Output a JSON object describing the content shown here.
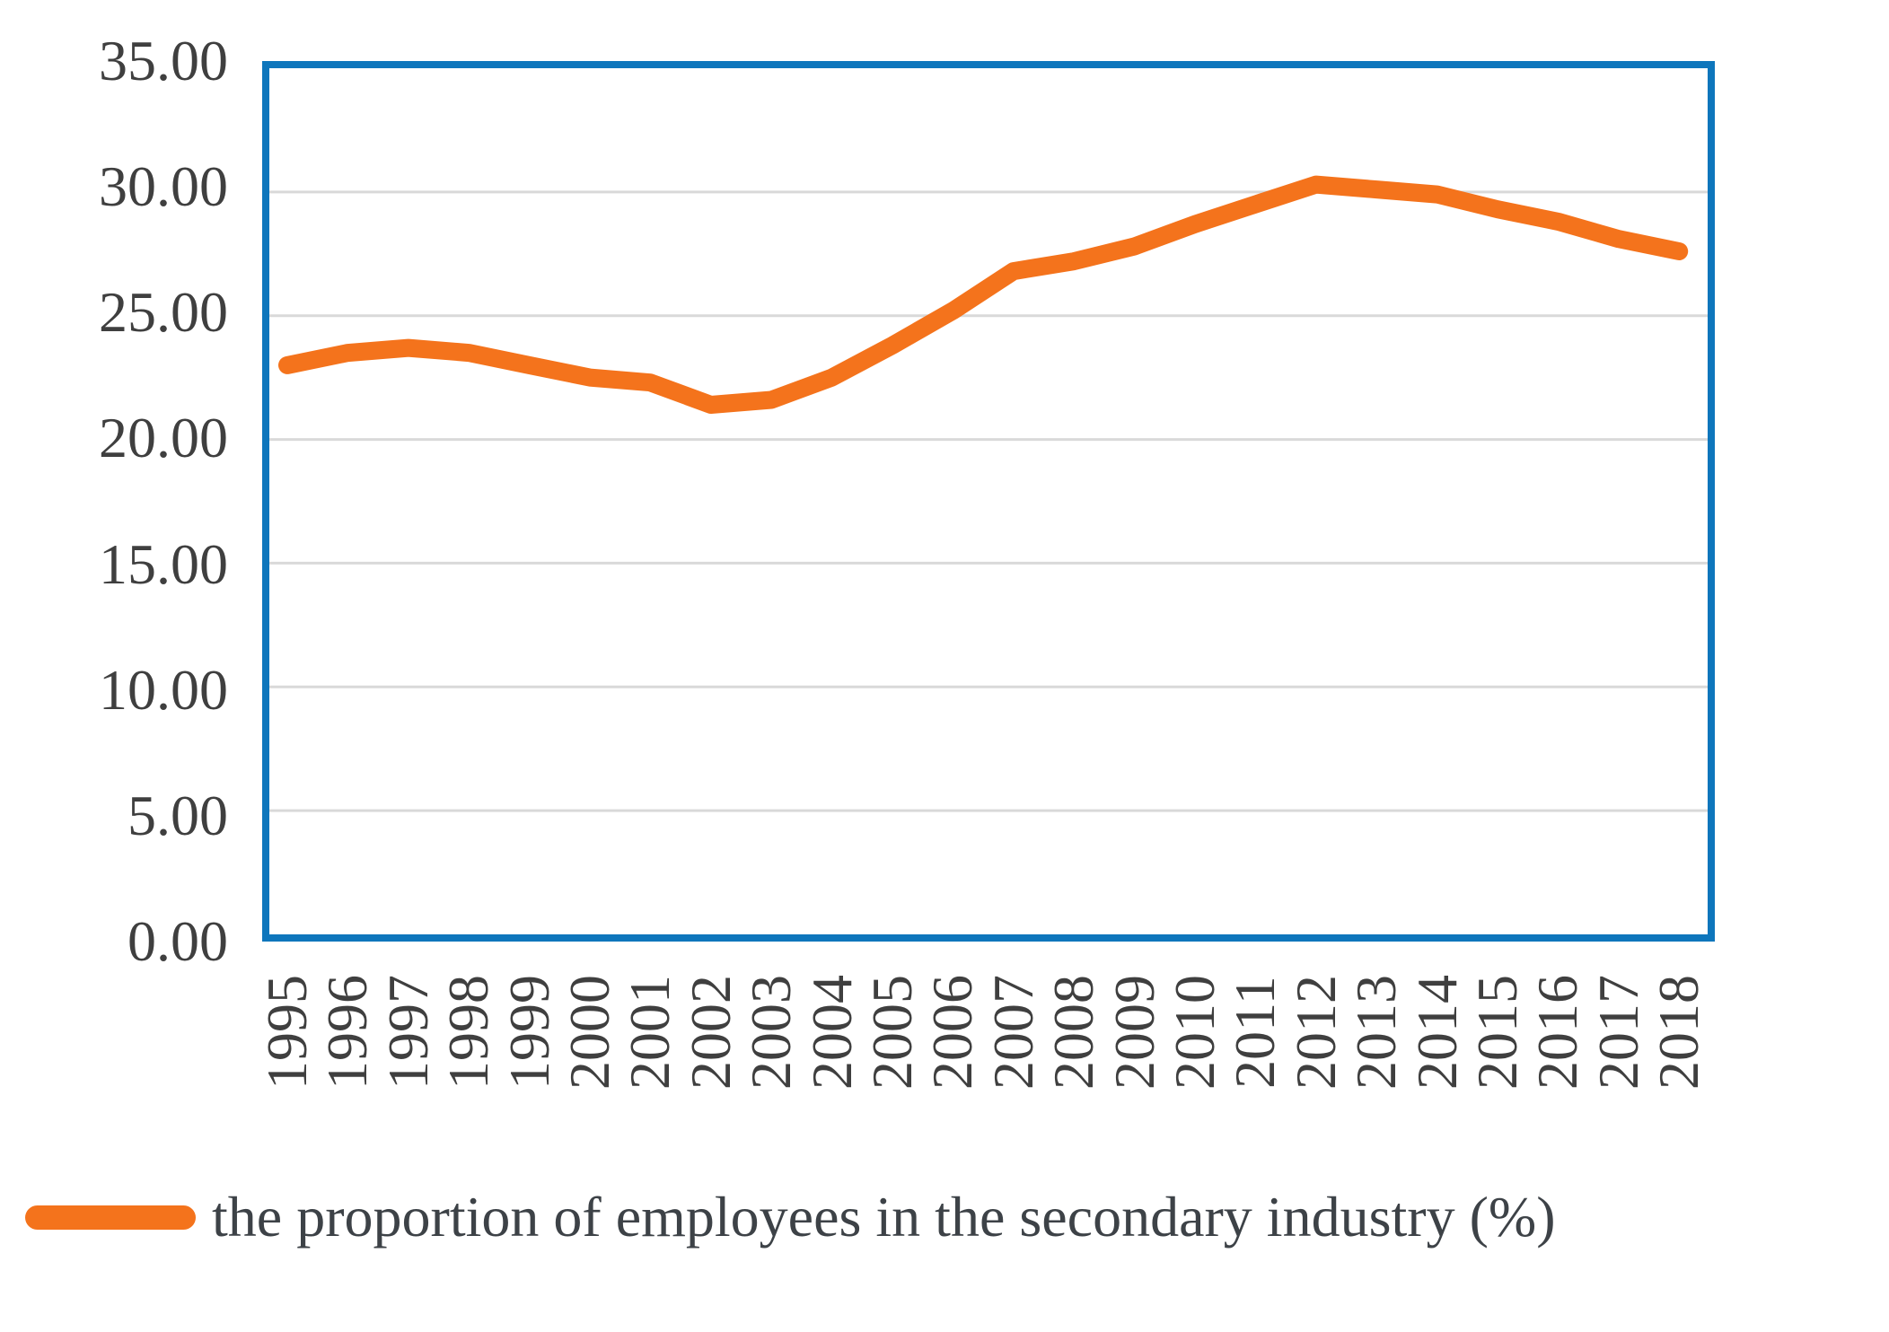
{
  "chart_data": {
    "type": "line",
    "title": "",
    "xlabel": "",
    "ylabel": "",
    "categories": [
      "1995",
      "1996",
      "1997",
      "1998",
      "1999",
      "2000",
      "2001",
      "2002",
      "2003",
      "2004",
      "2005",
      "2006",
      "2007",
      "2008",
      "2009",
      "2010",
      "2011",
      "2012",
      "2013",
      "2014",
      "2015",
      "2016",
      "2017",
      "2018"
    ],
    "series": [
      {
        "name": "the proportion of employees in the secondary industry（%）",
        "values": [
          23.0,
          23.5,
          23.7,
          23.5,
          23.0,
          22.5,
          22.3,
          21.4,
          21.6,
          22.5,
          23.8,
          25.2,
          26.8,
          27.2,
          27.8,
          28.7,
          29.5,
          30.3,
          30.1,
          29.9,
          29.3,
          28.8,
          28.1,
          27.6
        ]
      }
    ],
    "ylim": [
      0,
      35
    ],
    "y_ticks": [
      {
        "value": 35,
        "label": "35.00"
      },
      {
        "value": 30,
        "label": "30.00"
      },
      {
        "value": 25,
        "label": "25.00"
      },
      {
        "value": 20,
        "label": "20.00"
      },
      {
        "value": 15,
        "label": "15.00"
      },
      {
        "value": 10,
        "label": "10.00"
      },
      {
        "value": 5,
        "label": "5.00"
      },
      {
        "value": 0,
        "label": "0.00"
      }
    ],
    "grid": "horizontal",
    "legend_position": "bottom-left",
    "colors": {
      "line": "#F4731C",
      "plot_border": "#0E76BC",
      "gridline": "#D9D9D9",
      "tick_text": "#3F3F3F",
      "legend_text": "#3D4247",
      "background": "#FFFFFF"
    }
  }
}
